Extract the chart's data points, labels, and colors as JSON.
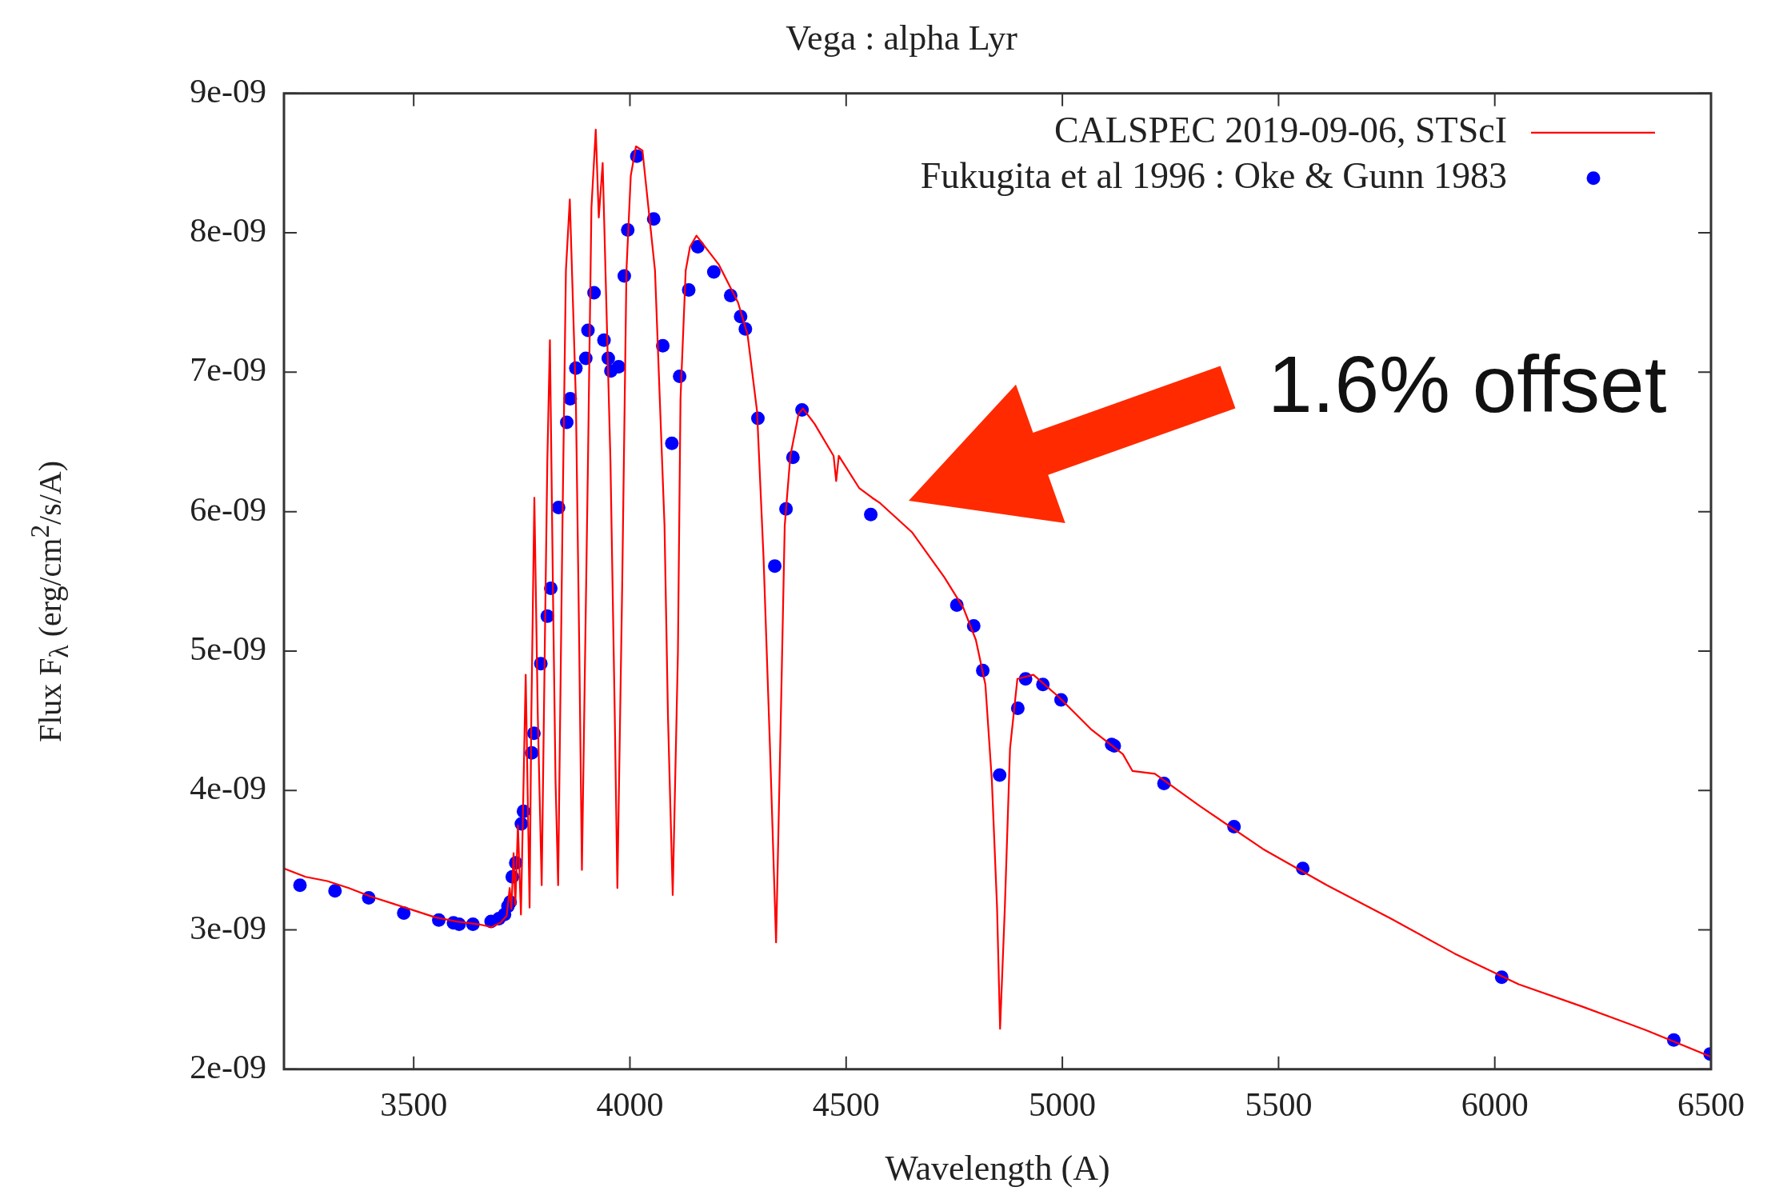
{
  "chart_data": {
    "type": "line",
    "title": "Vega : alpha Lyr",
    "xlabel": "Wavelength (A)",
    "ylabel": "Flux F$_{λ}$ (erg/cm$^{2}$/s/A)",
    "xlim": [
      3200,
      6500
    ],
    "xticks": [
      3500,
      4000,
      4500,
      5000,
      5500,
      6000,
      6500
    ],
    "ylim": [
      2e-09,
      9e-09
    ],
    "yticks": [
      {
        "value": 2e-09,
        "label": "2e-09"
      },
      {
        "value": 3e-09,
        "label": "3e-09"
      },
      {
        "value": 4e-09,
        "label": "4e-09"
      },
      {
        "value": 5e-09,
        "label": "5e-09"
      },
      {
        "value": 6e-09,
        "label": "6e-09"
      },
      {
        "value": 7e-09,
        "label": "7e-09"
      },
      {
        "value": 8e-09,
        "label": "8e-09"
      },
      {
        "value": 9e-09,
        "label": "9e-09"
      }
    ],
    "legend": "top right",
    "annotations": [
      "1.6% offset"
    ],
    "series": [
      {
        "name": "CALSPEC 2019-09-06, STScI",
        "type": "line",
        "color": "#ff0000",
        "marker": "none",
        "x": [
          3200,
          3250,
          3300,
          3350,
          3400,
          3450,
          3500,
          3550,
          3600,
          3650,
          3680,
          3700,
          3715,
          3722,
          3726,
          3731,
          3735,
          3741,
          3748,
          3759,
          3768,
          3772,
          3779,
          3787,
          3796,
          3803,
          3809,
          3815,
          3822,
          3828,
          3834,
          3844,
          3852,
          3861,
          3875,
          3883,
          3889,
          3903,
          3911,
          3921,
          3928,
          3937,
          3955,
          3965,
          3971,
          3982,
          3992,
          4002,
          4014,
          4029,
          4058,
          4080,
          4088,
          4099,
          4111,
          4117,
          4129,
          4139,
          4154,
          4206,
          4250,
          4272,
          4294,
          4309,
          4324,
          4338,
          4349,
          4358,
          4371,
          4390,
          4400,
          4427,
          4471,
          4477,
          4483,
          4530,
          4560,
          4579,
          4653,
          4727,
          4771,
          4800,
          4822,
          4837,
          4849,
          4856,
          4867,
          4879,
          4896,
          4933,
          4992,
          5066,
          5140,
          5162,
          5214,
          5317,
          5464,
          5612,
          5760,
          5907,
          6055,
          6202,
          6350,
          6500
        ],
        "values": [
          3.44e-09,
          3.38e-09,
          3.35e-09,
          3.3e-09,
          3.24e-09,
          3.19e-09,
          3.14e-09,
          3.09e-09,
          3.06e-09,
          3.04e-09,
          3.02e-09,
          3.05e-09,
          3.1e-09,
          3.3e-09,
          3.15e-09,
          3.55e-09,
          3.18e-09,
          3.75e-09,
          3.11e-09,
          4.83e-09,
          3.16e-09,
          4.53e-09,
          6.1e-09,
          4.53e-09,
          3.32e-09,
          4.99e-09,
          6.36e-09,
          7.23e-09,
          5.44e-09,
          4.07e-09,
          3.32e-09,
          5.9e-09,
          7.73e-09,
          8.24e-09,
          6.81e-09,
          4.99e-09,
          3.43e-09,
          6.36e-09,
          8.18e-09,
          8.74e-09,
          8.11e-09,
          8.5e-09,
          6.36e-09,
          4.53e-09,
          3.3e-09,
          5.44e-09,
          7.73e-09,
          8.41e-09,
          8.62e-09,
          8.59e-09,
          7.73e-09,
          5.9e-09,
          4.53e-09,
          3.25e-09,
          4.99e-09,
          6.81e-09,
          7.73e-09,
          7.9e-09,
          7.98e-09,
          7.77e-09,
          7.5e-09,
          7.27e-09,
          6.72e-09,
          5.67e-09,
          4.3e-09,
          2.91e-09,
          4.53e-09,
          5.9e-09,
          6.4e-09,
          6.7e-09,
          6.74e-09,
          6.63e-09,
          6.4e-09,
          6.22e-09,
          6.4e-09,
          6.17e-09,
          6.1e-09,
          6.06e-09,
          5.85e-09,
          5.53e-09,
          5.31e-09,
          5.08e-09,
          4.76e-09,
          4.07e-09,
          3.16e-09,
          2.29e-09,
          3.16e-09,
          4.3e-09,
          4.8e-09,
          4.83e-09,
          4.67e-09,
          4.44e-09,
          4.26e-09,
          4.14e-09,
          4.12e-09,
          3.89e-09,
          3.58e-09,
          3.32e-09,
          3.08e-09,
          2.83e-09,
          2.61e-09,
          2.45e-09,
          2.28e-09,
          2.09e-09
        ]
      },
      {
        "name": "Fukugita et al 1996 : Oke & Gunn 1983",
        "type": "scatter",
        "color": "#0000ff",
        "marker": "circle",
        "x": [
          3237,
          3318,
          3396,
          3477,
          3558,
          3592,
          3605,
          3637,
          3679,
          3697,
          3710,
          3718,
          3723,
          3728,
          3736,
          3749,
          3754,
          3773,
          3778,
          3794,
          3809,
          3817,
          3835,
          3854,
          3862,
          3875,
          3898,
          3903,
          3917,
          3940,
          3950,
          3956,
          3974,
          3987,
          3995,
          4016,
          4055,
          4076,
          4097,
          4115,
          4136,
          4157,
          4194,
          4233,
          4256,
          4267,
          4296,
          4335,
          4361,
          4377,
          4398,
          4557,
          4756,
          4795,
          4816,
          4855,
          4897,
          4915,
          4955,
          4997,
          5114,
          5120,
          5235,
          5397,
          5556,
          6016,
          6414,
          6498
        ],
        "values": [
          3.32e-09,
          3.28e-09,
          3.23e-09,
          3.12e-09,
          3.07e-09,
          3.05e-09,
          3.04e-09,
          3.04e-09,
          3.06e-09,
          3.08e-09,
          3.11e-09,
          3.17e-09,
          3.2e-09,
          3.38e-09,
          3.48e-09,
          3.76e-09,
          3.85e-09,
          4.27e-09,
          4.41e-09,
          4.91e-09,
          5.25e-09,
          5.45e-09,
          6.03e-09,
          6.64e-09,
          6.81e-09,
          7.03e-09,
          7.1e-09,
          7.3e-09,
          7.57e-09,
          7.23e-09,
          7.1e-09,
          7.01e-09,
          7.04e-09,
          7.69e-09,
          8.02e-09,
          8.55e-09,
          8.1e-09,
          7.19e-09,
          6.49e-09,
          6.97e-09,
          7.59e-09,
          7.9e-09,
          7.72e-09,
          7.55e-09,
          7.4e-09,
          7.31e-09,
          6.67e-09,
          5.61e-09,
          6.02e-09,
          6.39e-09,
          6.73e-09,
          5.98e-09,
          5.33e-09,
          5.18e-09,
          4.86e-09,
          4.11e-09,
          4.59e-09,
          4.8e-09,
          4.76e-09,
          4.65e-09,
          4.33e-09,
          4.32e-09,
          4.05e-09,
          3.74e-09,
          3.44e-09,
          2.66e-09,
          2.21e-09,
          2.11e-09
        ]
      }
    ]
  }
}
